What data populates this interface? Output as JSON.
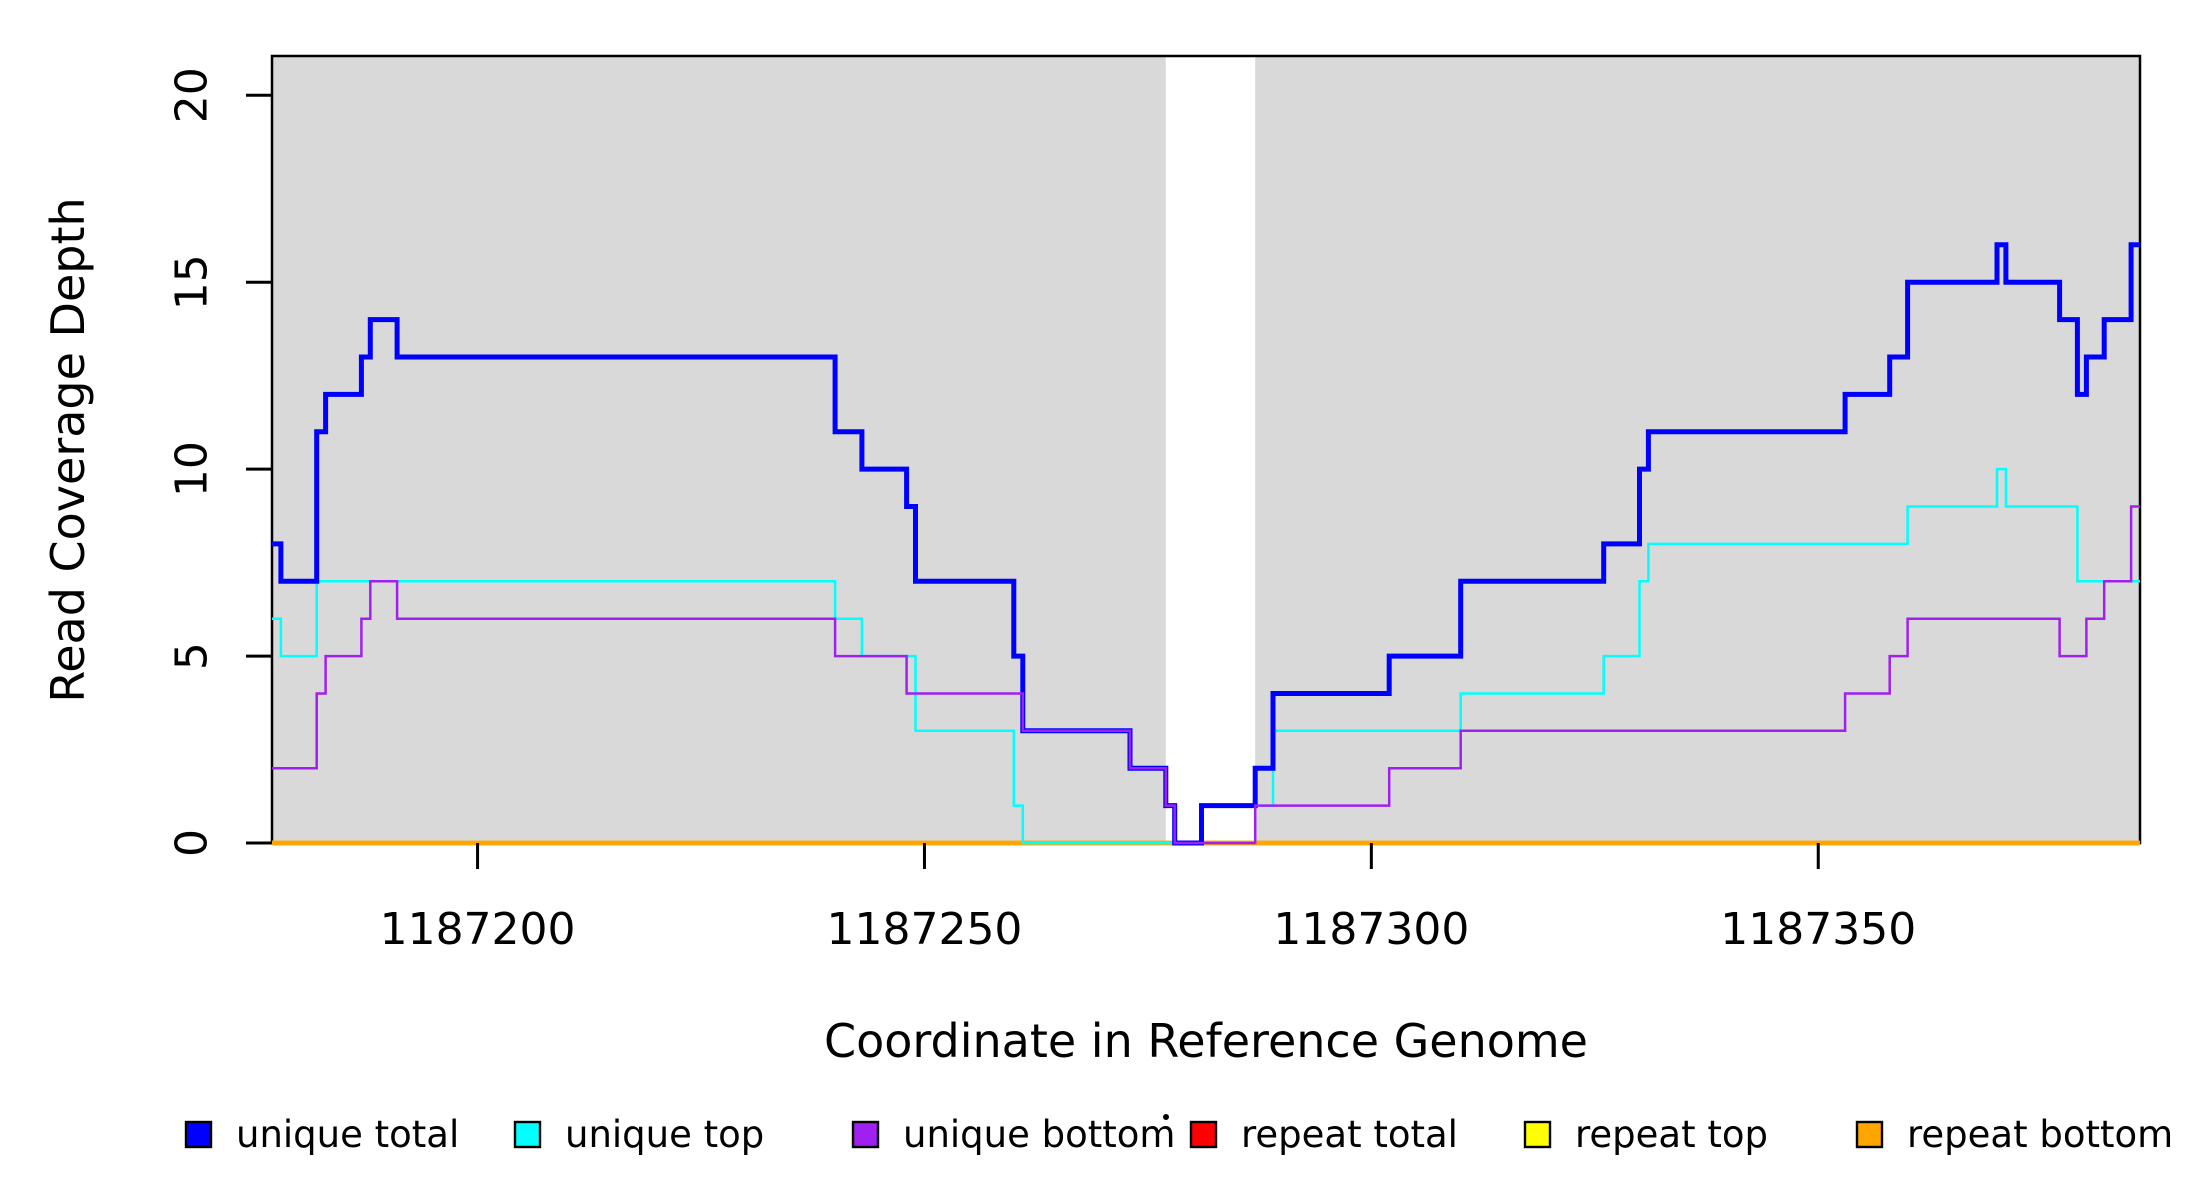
{
  "chart_data": {
    "type": "line",
    "step_mode": "post",
    "title": "",
    "xlabel": "Coordinate in Reference Genome",
    "ylabel": "Read Coverage Depth",
    "xlim": [
      1187177,
      1187386
    ],
    "ylim": [
      0,
      21.05
    ],
    "x_ticks": [
      1187200,
      1187250,
      1187300,
      1187350
    ],
    "y_ticks": [
      0,
      5,
      10,
      15,
      20
    ],
    "grid": false,
    "plot_background": "#ffffff",
    "shaded_region_color": "#d9d9d9",
    "background_regions": [
      {
        "x0": 1187177,
        "x1": 1187277
      },
      {
        "x0": 1187287,
        "x1": 1187386
      }
    ],
    "series": [
      {
        "name": "repeat total",
        "color": "#ff0000",
        "line_width": 4.5,
        "points": [
          [
            1187177,
            0
          ]
        ]
      },
      {
        "name": "repeat top",
        "color": "#ffff00",
        "line_width": 4.5,
        "points": [
          [
            1187177,
            0
          ]
        ]
      },
      {
        "name": "repeat bottom",
        "color": "#ffa500",
        "line_width": 4.5,
        "points": [
          [
            1187177,
            0
          ]
        ]
      },
      {
        "name": "unique top",
        "color": "#00ffff",
        "line_width": 2.5,
        "points": [
          [
            1187177,
            6
          ],
          [
            1187178,
            5
          ],
          [
            1187182,
            7
          ],
          [
            1187240,
            6
          ],
          [
            1187243,
            5
          ],
          [
            1187249,
            3
          ],
          [
            1187260,
            1
          ],
          [
            1187261,
            0
          ],
          [
            1187281,
            1
          ],
          [
            1187289,
            3
          ],
          [
            1187310,
            4
          ],
          [
            1187326,
            5
          ],
          [
            1187330,
            7
          ],
          [
            1187331,
            8
          ],
          [
            1187360,
            9
          ],
          [
            1187370,
            10
          ],
          [
            1187371,
            9
          ],
          [
            1187379,
            7
          ]
        ]
      },
      {
        "name": "unique total",
        "color": "#0000ff",
        "line_width": 5,
        "points": [
          [
            1187177,
            8
          ],
          [
            1187178,
            7
          ],
          [
            1187182,
            11
          ],
          [
            1187183,
            12
          ],
          [
            1187187,
            13
          ],
          [
            1187188,
            14
          ],
          [
            1187191,
            13
          ],
          [
            1187240,
            11
          ],
          [
            1187243,
            10
          ],
          [
            1187248,
            9
          ],
          [
            1187249,
            7
          ],
          [
            1187260,
            5
          ],
          [
            1187261,
            3
          ],
          [
            1187273,
            2
          ],
          [
            1187277,
            1
          ],
          [
            1187278,
            0
          ],
          [
            1187281,
            1
          ],
          [
            1187287,
            2
          ],
          [
            1187289,
            4
          ],
          [
            1187302,
            5
          ],
          [
            1187310,
            7
          ],
          [
            1187326,
            8
          ],
          [
            1187330,
            10
          ],
          [
            1187331,
            11
          ],
          [
            1187353,
            12
          ],
          [
            1187358,
            13
          ],
          [
            1187360,
            15
          ],
          [
            1187370,
            16
          ],
          [
            1187371,
            15
          ],
          [
            1187377,
            14
          ],
          [
            1187379,
            12
          ],
          [
            1187380,
            13
          ],
          [
            1187382,
            14
          ],
          [
            1187385,
            16
          ]
        ]
      },
      {
        "name": "unique bottom",
        "color": "#a020f0",
        "line_width": 2.5,
        "points": [
          [
            1187177,
            2
          ],
          [
            1187182,
            4
          ],
          [
            1187183,
            5
          ],
          [
            1187187,
            6
          ],
          [
            1187188,
            7
          ],
          [
            1187191,
            6
          ],
          [
            1187240,
            5
          ],
          [
            1187248,
            4
          ],
          [
            1187261,
            3
          ],
          [
            1187273,
            2
          ],
          [
            1187277,
            1
          ],
          [
            1187278,
            0
          ],
          [
            1187287,
            1
          ],
          [
            1187302,
            2
          ],
          [
            1187310,
            3
          ],
          [
            1187353,
            4
          ],
          [
            1187358,
            5
          ],
          [
            1187360,
            6
          ],
          [
            1187377,
            5
          ],
          [
            1187380,
            6
          ],
          [
            1187382,
            7
          ],
          [
            1187385,
            9
          ]
        ]
      }
    ],
    "legend": {
      "position": "bottom",
      "entries": [
        {
          "label": "unique total",
          "color": "#0000ff"
        },
        {
          "label": "unique top",
          "color": "#00ffff"
        },
        {
          "label": "unique bottom",
          "color": "#a020f0"
        },
        {
          "label": "repeat total",
          "color": "#ff0000"
        },
        {
          "label": "repeat top",
          "color": "#ffff00"
        },
        {
          "label": "repeat bottom",
          "color": "#ffa500"
        }
      ],
      "stray_dot": true
    }
  }
}
